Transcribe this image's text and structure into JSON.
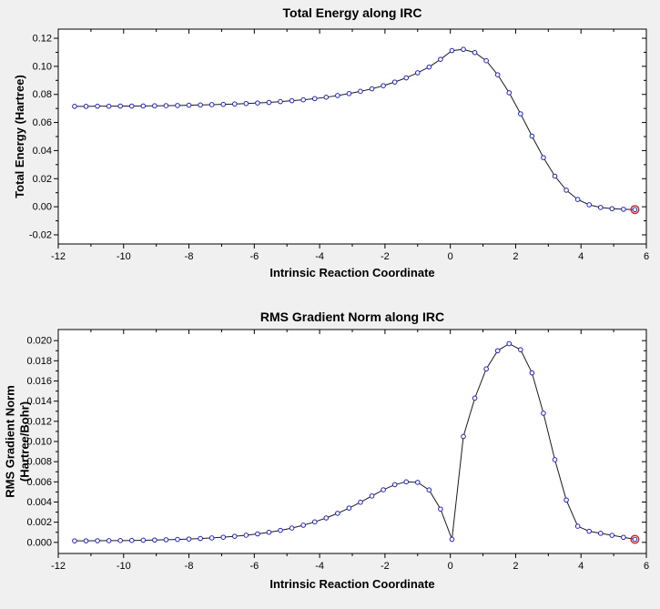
{
  "colors": {
    "background": "#f0f0f0",
    "plot_bg": "#ffffff",
    "frame": "#000000",
    "text": "#000000",
    "line": "#1a1a1a",
    "marker": "#2222bb",
    "marker_fill": "#ffffff",
    "endpoint_ring": "#d02020"
  },
  "chart_data": [
    {
      "type": "line",
      "title": "Total Energy along IRC",
      "xlabel": "Intrinsic Reaction Coordinate",
      "ylabel": "Total Energy (Hartree)",
      "xlim": [
        -12,
        6
      ],
      "ylim": [
        -0.0265,
        0.1265
      ],
      "x_ticks": [
        -12,
        -10,
        -8,
        -6,
        -4,
        -2,
        0,
        2,
        4,
        6
      ],
      "x_tick_labels": [
        "-12",
        "-10",
        "-8",
        "-6",
        "-4",
        "-2",
        "0",
        "2",
        "4",
        "6"
      ],
      "x_minor_step": 1,
      "y_ticks": [
        -0.02,
        0,
        0.02,
        0.04,
        0.06,
        0.08,
        0.1,
        0.12
      ],
      "y_tick_labels": [
        "-0.02",
        "0.00",
        "0.02",
        "0.04",
        "0.06",
        "0.08",
        "0.10",
        "0.12"
      ],
      "y_minor_step": 0.01,
      "grid": false,
      "legend": "none",
      "marker": "open-circle",
      "endpoint_marker": "red-ring",
      "points": [
        [
          -11.5,
          0.0715
        ],
        [
          -11.15,
          0.0715
        ],
        [
          -10.8,
          0.0716
        ],
        [
          -10.45,
          0.0716
        ],
        [
          -10.1,
          0.0717
        ],
        [
          -9.75,
          0.0717
        ],
        [
          -9.4,
          0.0718
        ],
        [
          -9.05,
          0.0719
        ],
        [
          -8.7,
          0.072
        ],
        [
          -8.35,
          0.0721
        ],
        [
          -8.0,
          0.0723
        ],
        [
          -7.65,
          0.0725
        ],
        [
          -7.3,
          0.0727
        ],
        [
          -6.95,
          0.0729
        ],
        [
          -6.6,
          0.0732
        ],
        [
          -6.25,
          0.0735
        ],
        [
          -5.9,
          0.0739
        ],
        [
          -5.55,
          0.0743
        ],
        [
          -5.2,
          0.0749
        ],
        [
          -4.85,
          0.0755
        ],
        [
          -4.5,
          0.0762
        ],
        [
          -4.15,
          0.077
        ],
        [
          -3.8,
          0.078
        ],
        [
          -3.45,
          0.0792
        ],
        [
          -3.1,
          0.0806
        ],
        [
          -2.75,
          0.0822
        ],
        [
          -2.4,
          0.084
        ],
        [
          -2.05,
          0.0862
        ],
        [
          -1.7,
          0.0888
        ],
        [
          -1.35,
          0.0918
        ],
        [
          -1.0,
          0.0954
        ],
        [
          -0.65,
          0.0995
        ],
        [
          -0.3,
          0.105
        ],
        [
          0.05,
          0.1112
        ],
        [
          0.4,
          0.1121
        ],
        [
          0.75,
          0.1098
        ],
        [
          1.1,
          0.104
        ],
        [
          1.45,
          0.094
        ],
        [
          1.8,
          0.0812
        ],
        [
          2.15,
          0.0662
        ],
        [
          2.5,
          0.0503
        ],
        [
          2.85,
          0.035
        ],
        [
          3.2,
          0.0218
        ],
        [
          3.55,
          0.0118
        ],
        [
          3.9,
          0.0052
        ],
        [
          4.25,
          0.0014
        ],
        [
          4.6,
          -0.0005
        ],
        [
          4.95,
          -0.0014
        ],
        [
          5.3,
          -0.0018
        ],
        [
          5.65,
          -0.002
        ]
      ]
    },
    {
      "type": "line",
      "title": "RMS Gradient Norm along IRC",
      "xlabel": "Intrinsic Reaction Coordinate",
      "ylabel": "RMS Gradient Norm\n(Hartree/Bohr)",
      "xlim": [
        -12,
        6
      ],
      "ylim": [
        -0.0011,
        0.0211
      ],
      "x_ticks": [
        -12,
        -10,
        -8,
        -6,
        -4,
        -2,
        0,
        2,
        4,
        6
      ],
      "x_tick_labels": [
        "-12",
        "-10",
        "-8",
        "-6",
        "-4",
        "-2",
        "0",
        "2",
        "4",
        "6"
      ],
      "x_minor_step": 1,
      "y_ticks": [
        0,
        0.002,
        0.004,
        0.006,
        0.008,
        0.01,
        0.012,
        0.014,
        0.016,
        0.018,
        0.02
      ],
      "y_tick_labels": [
        "0.000",
        "0.002",
        "0.004",
        "0.006",
        "0.008",
        "0.010",
        "0.012",
        "0.014",
        "0.016",
        "0.018",
        "0.020"
      ],
      "y_minor_step": 0.001,
      "grid": false,
      "legend": "none",
      "marker": "open-circle",
      "endpoint_marker": "red-ring",
      "points": [
        [
          -11.5,
          0.00015
        ],
        [
          -11.15,
          0.00015
        ],
        [
          -10.8,
          0.00016
        ],
        [
          -10.45,
          0.00017
        ],
        [
          -10.1,
          0.00018
        ],
        [
          -9.75,
          0.00019
        ],
        [
          -9.4,
          0.00021
        ],
        [
          -9.05,
          0.00023
        ],
        [
          -8.7,
          0.00026
        ],
        [
          -8.35,
          0.00029
        ],
        [
          -8.0,
          0.00033
        ],
        [
          -7.65,
          0.00038
        ],
        [
          -7.3,
          0.00044
        ],
        [
          -6.95,
          0.00051
        ],
        [
          -6.6,
          0.0006
        ],
        [
          -6.25,
          0.00071
        ],
        [
          -5.9,
          0.00084
        ],
        [
          -5.55,
          0.001
        ],
        [
          -5.2,
          0.00119
        ],
        [
          -4.85,
          0.00142
        ],
        [
          -4.5,
          0.0017
        ],
        [
          -4.15,
          0.00203
        ],
        [
          -3.8,
          0.00242
        ],
        [
          -3.45,
          0.00288
        ],
        [
          -3.1,
          0.0034
        ],
        [
          -2.75,
          0.00398
        ],
        [
          -2.4,
          0.0046
        ],
        [
          -2.05,
          0.00521
        ],
        [
          -1.7,
          0.00572
        ],
        [
          -1.35,
          0.006
        ],
        [
          -1.0,
          0.00595
        ],
        [
          -0.65,
          0.0052
        ],
        [
          -0.3,
          0.0033
        ],
        [
          0.05,
          0.0003
        ],
        [
          0.4,
          0.0105
        ],
        [
          0.75,
          0.0143
        ],
        [
          1.1,
          0.0172
        ],
        [
          1.45,
          0.019
        ],
        [
          1.8,
          0.0197
        ],
        [
          2.15,
          0.0191
        ],
        [
          2.5,
          0.0168
        ],
        [
          2.85,
          0.0128
        ],
        [
          3.2,
          0.0082
        ],
        [
          3.55,
          0.0042
        ],
        [
          3.9,
          0.0016
        ],
        [
          4.25,
          0.0011
        ],
        [
          4.6,
          0.0009
        ],
        [
          4.95,
          0.0007
        ],
        [
          5.3,
          0.0005
        ],
        [
          5.65,
          0.0003
        ]
      ]
    }
  ]
}
